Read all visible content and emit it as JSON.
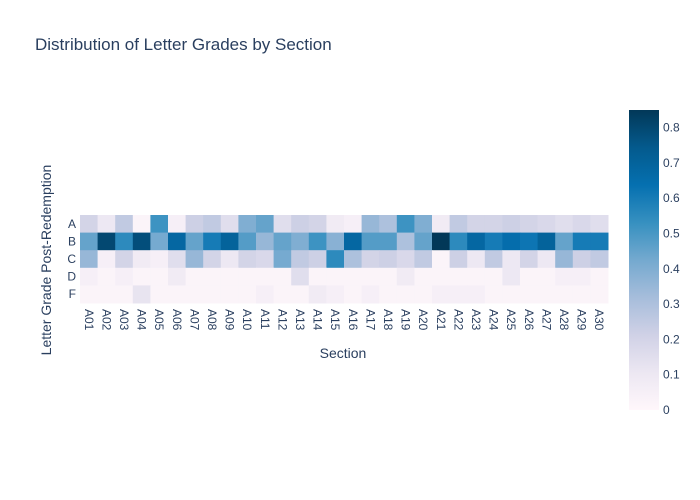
{
  "chart_data": {
    "type": "heatmap",
    "title": "Distribution of Letter Grades by Section",
    "xlabel": "Section",
    "ylabel": "Letter Grade Post-Redemption",
    "x": [
      "A01",
      "A02",
      "A03",
      "A04",
      "A05",
      "A06",
      "A07",
      "A08",
      "A09",
      "A10",
      "A11",
      "A12",
      "A13",
      "A14",
      "A15",
      "A16",
      "A17",
      "A18",
      "A19",
      "A20",
      "A21",
      "A22",
      "A23",
      "A24",
      "A25",
      "A26",
      "A27",
      "A28",
      "A29",
      "A30"
    ],
    "y": [
      "A",
      "B",
      "C",
      "D",
      "F"
    ],
    "z": [
      [
        0.2,
        0.1,
        0.25,
        0.02,
        0.52,
        0.05,
        0.22,
        0.25,
        0.15,
        0.4,
        0.45,
        0.15,
        0.22,
        0.2,
        0.08,
        0.05,
        0.35,
        0.3,
        0.52,
        0.4,
        0.08,
        0.25,
        0.2,
        0.2,
        0.22,
        0.2,
        0.18,
        0.15,
        0.18,
        0.15
      ],
      [
        0.45,
        0.8,
        0.55,
        0.78,
        0.42,
        0.68,
        0.45,
        0.6,
        0.7,
        0.48,
        0.35,
        0.45,
        0.4,
        0.52,
        0.38,
        0.68,
        0.48,
        0.48,
        0.3,
        0.45,
        0.85,
        0.55,
        0.68,
        0.6,
        0.65,
        0.62,
        0.7,
        0.45,
        0.6,
        0.6
      ],
      [
        0.35,
        0.05,
        0.2,
        0.08,
        0.05,
        0.15,
        0.35,
        0.2,
        0.1,
        0.2,
        0.18,
        0.42,
        0.25,
        0.22,
        0.55,
        0.3,
        0.2,
        0.22,
        0.18,
        0.25,
        0.02,
        0.22,
        0.1,
        0.25,
        0.1,
        0.2,
        0.1,
        0.35,
        0.22,
        0.25
      ],
      [
        0.05,
        0.02,
        0.05,
        0.02,
        0.02,
        0.08,
        0.02,
        0.02,
        0.02,
        0.02,
        0.02,
        0.02,
        0.15,
        0.02,
        0.02,
        0.02,
        0.02,
        0.02,
        0.08,
        0.02,
        0.02,
        0.02,
        0.02,
        0.02,
        0.1,
        0.02,
        0.02,
        0.05,
        0.05,
        0.02
      ],
      [
        0.02,
        0.02,
        0.02,
        0.12,
        0.02,
        0.02,
        0.02,
        0.02,
        0.02,
        0.02,
        0.05,
        0.02,
        0.02,
        0.08,
        0.05,
        0.02,
        0.05,
        0.02,
        0.02,
        0.02,
        0.05,
        0.05,
        0.05,
        0.02,
        0.02,
        0.02,
        0.02,
        0.02,
        0.02,
        0.02
      ]
    ],
    "zlim": [
      0,
      0.85
    ],
    "colorbar_ticks": [
      "0",
      "0.1",
      "0.2",
      "0.3",
      "0.4",
      "0.5",
      "0.6",
      "0.7",
      "0.8"
    ],
    "colorscale": "PuBu",
    "colors": {
      "text": "#2a3f5f",
      "background": "#ffffff"
    }
  }
}
